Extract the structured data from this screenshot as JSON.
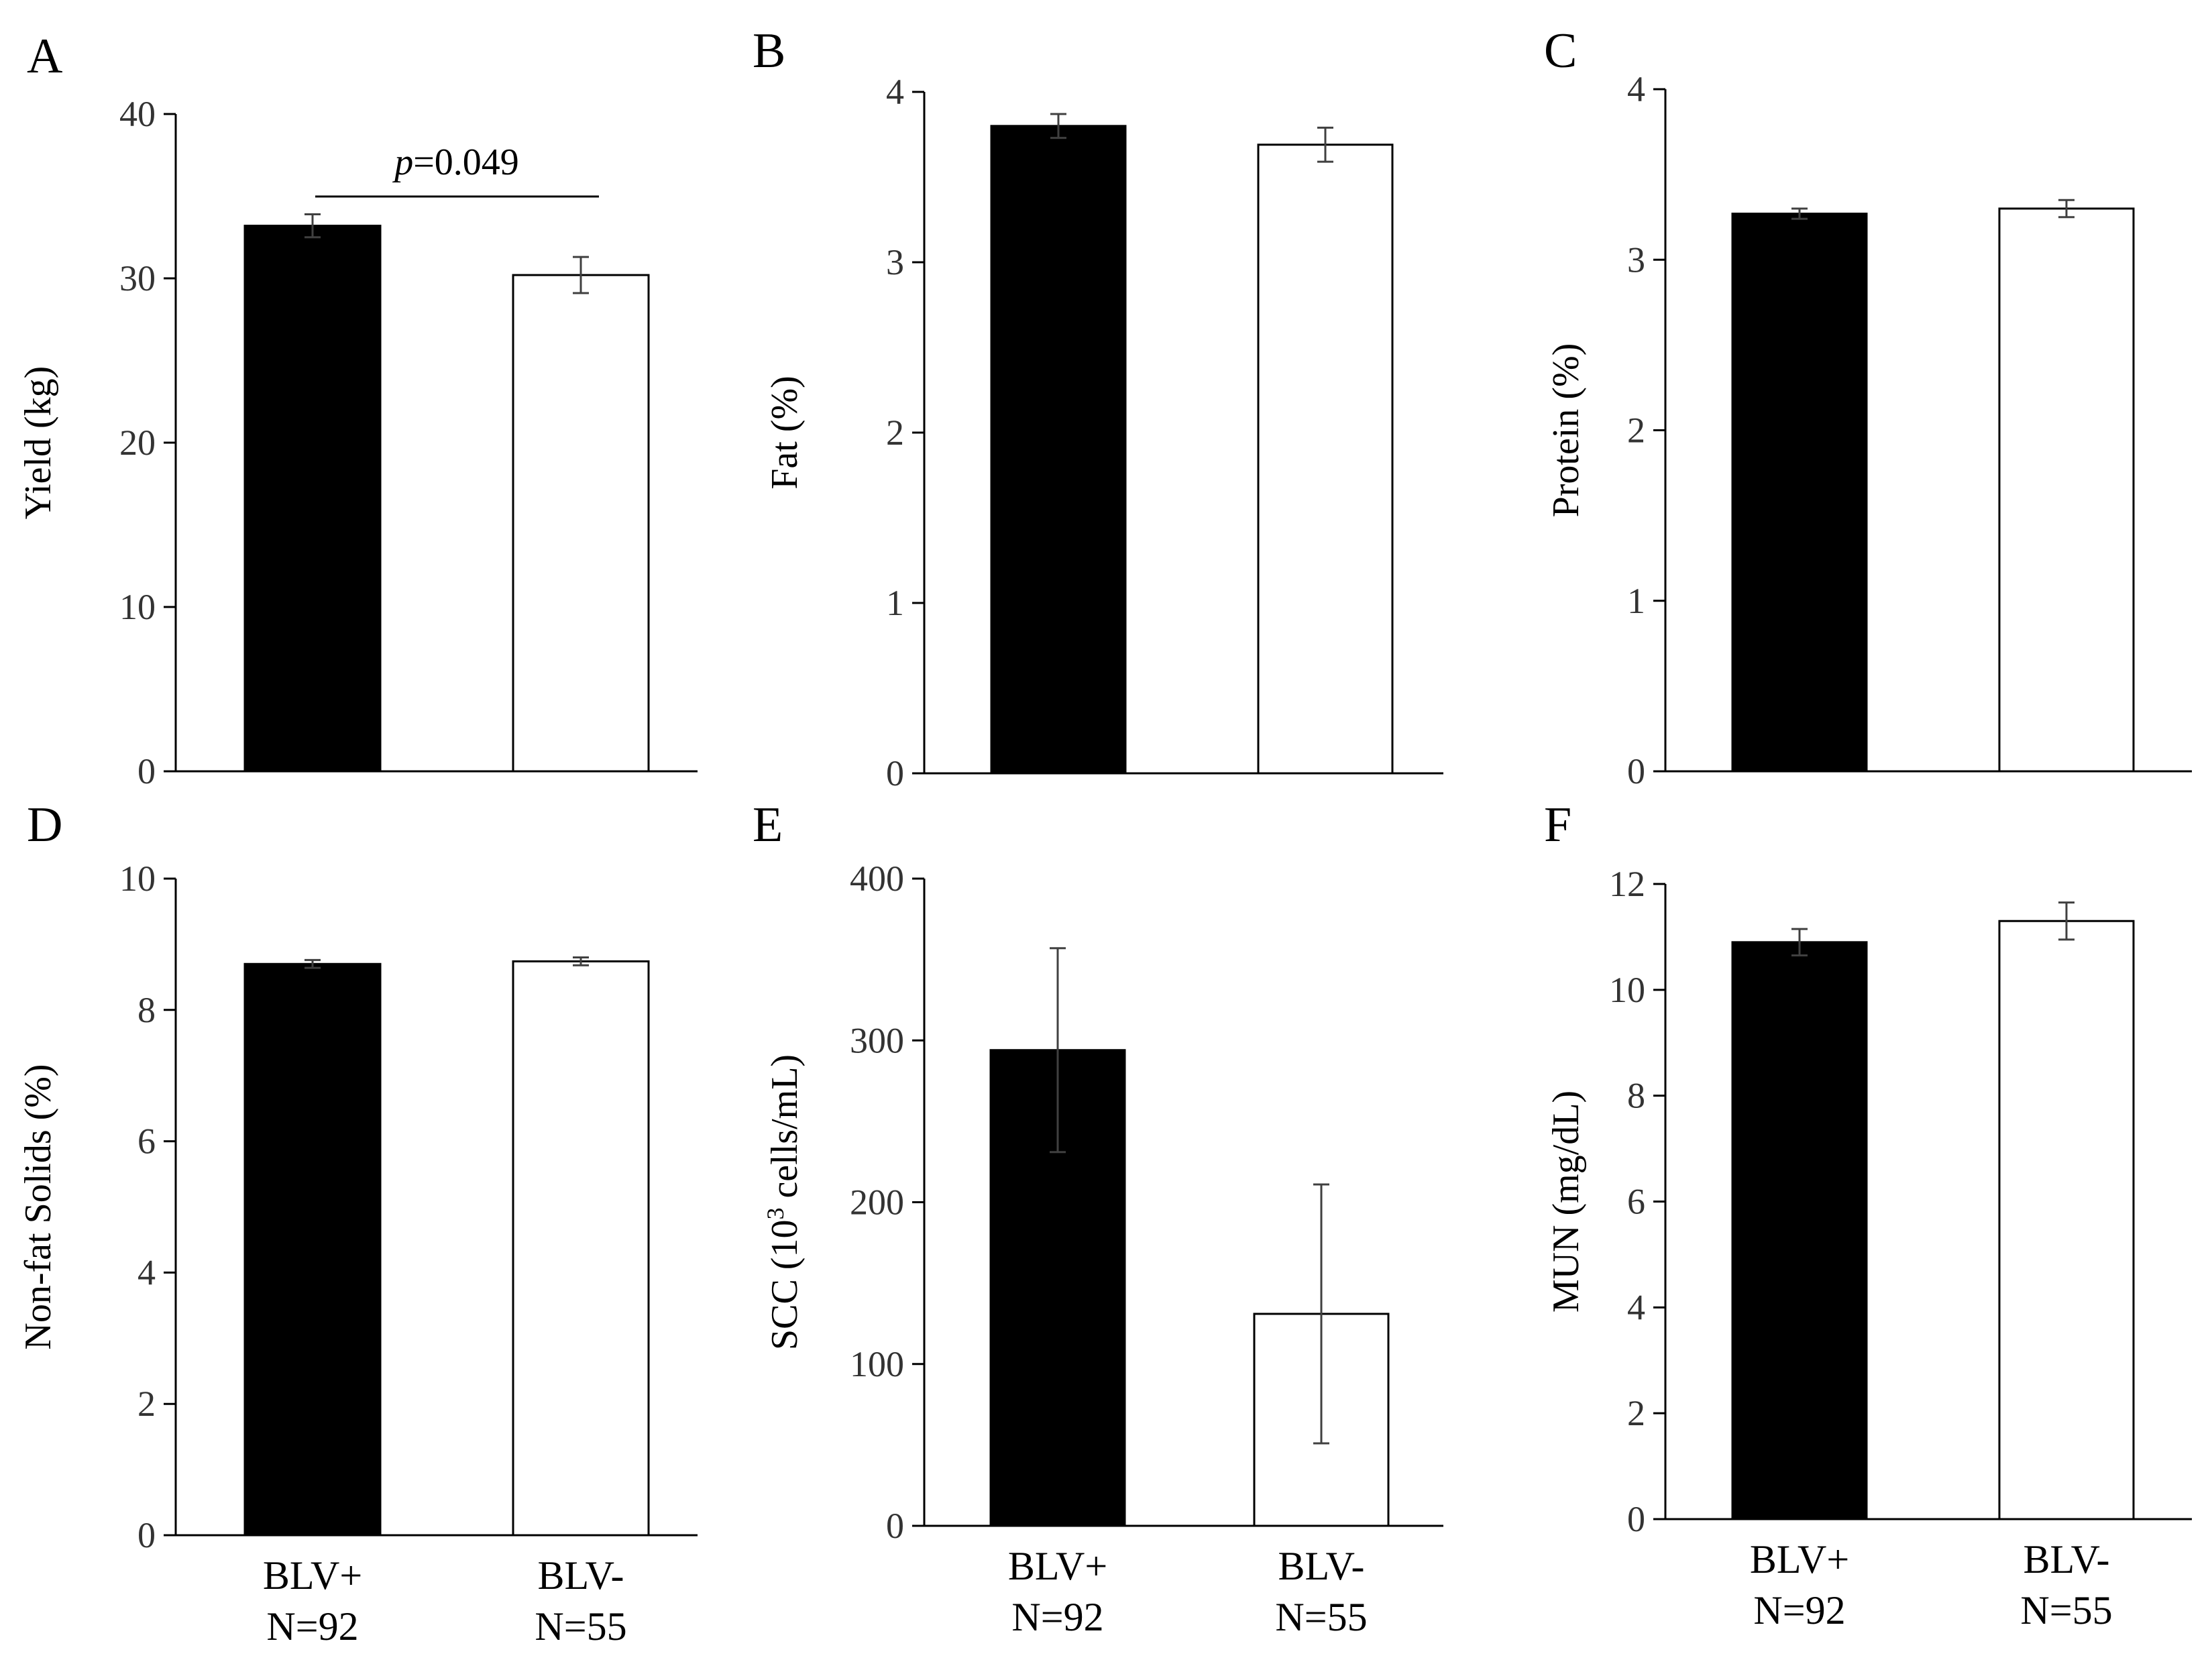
{
  "figure": {
    "categories": [
      {
        "group": "BLV+",
        "n": "N=92"
      },
      {
        "group": "BLV-",
        "n": "N=55"
      }
    ],
    "colors": {
      "blv_pos_fill": "#000000",
      "blv_neg_fill": "#ffffff",
      "axis": "#000000",
      "error_bar": "#404040"
    }
  },
  "chart_data": [
    {
      "type": "bar",
      "panel": "A",
      "title": "",
      "xlabel": "",
      "ylabel": "Yield (kg)",
      "categories": [
        "BLV+",
        "BLV-"
      ],
      "values": [
        33.2,
        30.2
      ],
      "errors": [
        0.7,
        1.1
      ],
      "ylim": [
        0,
        40
      ],
      "yticks": [
        "0",
        "10",
        "20",
        "30",
        "40"
      ],
      "annotation": {
        "p_symbol": "p",
        "p_text": "=0.049"
      }
    },
    {
      "type": "bar",
      "panel": "B",
      "title": "",
      "xlabel": "",
      "ylabel": "Fat (%)",
      "categories": [
        "BLV+",
        "BLV-"
      ],
      "values": [
        3.8,
        3.69
      ],
      "errors": [
        0.07,
        0.1
      ],
      "ylim": [
        0,
        4
      ],
      "yticks": [
        "0",
        "1",
        "2",
        "3",
        "4"
      ]
    },
    {
      "type": "bar",
      "panel": "C",
      "title": "",
      "xlabel": "",
      "ylabel": "Protein (%)",
      "categories": [
        "BLV+",
        "BLV-"
      ],
      "values": [
        3.27,
        3.3
      ],
      "errors": [
        0.03,
        0.05
      ],
      "ylim": [
        0,
        4
      ],
      "yticks": [
        "0",
        "1",
        "2",
        "3",
        "4"
      ]
    },
    {
      "type": "bar",
      "panel": "D",
      "title": "",
      "xlabel": "",
      "ylabel": "Non-fat Solids (%)",
      "categories": [
        "BLV+",
        "BLV-"
      ],
      "values": [
        8.7,
        8.74
      ],
      "errors": [
        0.06,
        0.06
      ],
      "ylim": [
        0,
        10
      ],
      "yticks": [
        "0",
        "2",
        "4",
        "6",
        "8",
        "10"
      ]
    },
    {
      "type": "bar",
      "panel": "E",
      "title": "",
      "xlabel": "",
      "ylabel": "SCC (10",
      "ylabel_sup": "3",
      "ylabel_tail": " cells/mL)",
      "categories": [
        "BLV+",
        "BLV-"
      ],
      "values": [
        294,
        131
      ],
      "errors": [
        63,
        80
      ],
      "ylim": [
        0,
        400
      ],
      "yticks": [
        "0",
        "100",
        "200",
        "300",
        "400"
      ]
    },
    {
      "type": "bar",
      "panel": "F",
      "title": "",
      "xlabel": "",
      "ylabel": "MUN (mg/dL)",
      "categories": [
        "BLV+",
        "BLV-"
      ],
      "values": [
        10.9,
        11.3
      ],
      "errors": [
        0.25,
        0.35
      ],
      "ylim": [
        0,
        12
      ],
      "yticks": [
        "0",
        "2",
        "4",
        "6",
        "8",
        "10",
        "12"
      ]
    }
  ]
}
